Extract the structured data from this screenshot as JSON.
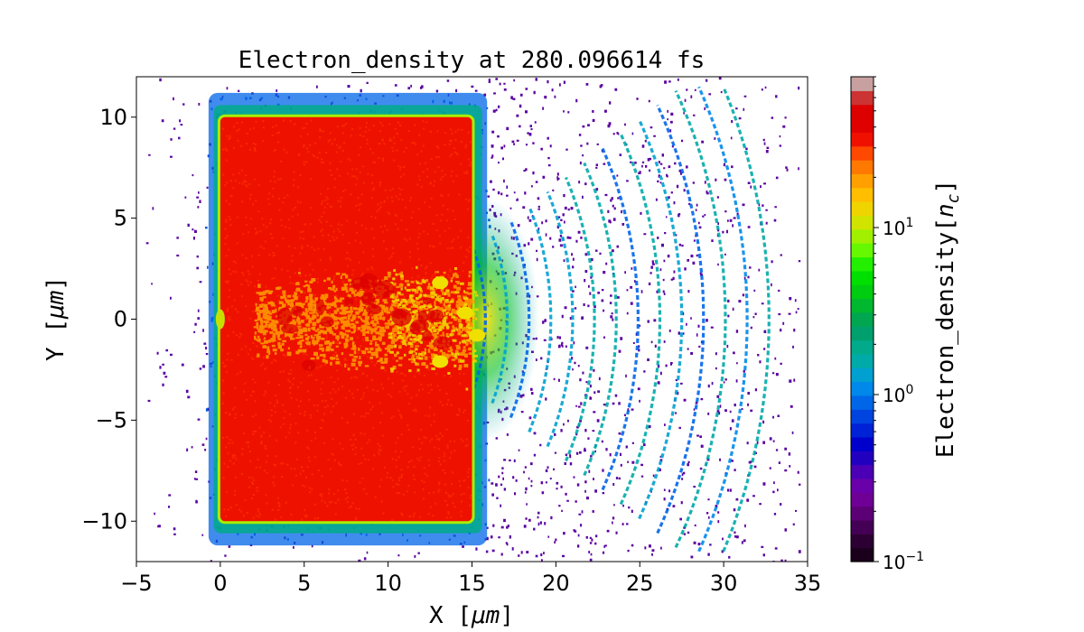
{
  "chart_data": {
    "type": "heatmap",
    "title": "Electron_density at 280.096614 fs",
    "xlabel": "X [",
    "xlabel_unit": "μm",
    "xlabel_close": "]",
    "ylabel": "Y [",
    "ylabel_unit": "μm",
    "ylabel_close": "]",
    "xlim": [
      -5,
      35
    ],
    "ylim": [
      -12,
      12
    ],
    "xticks": [
      -5,
      0,
      5,
      10,
      15,
      20,
      25,
      30,
      35
    ],
    "xtick_labels": [
      "−5",
      "0",
      "5",
      "10",
      "15",
      "20",
      "25",
      "30",
      "35"
    ],
    "yticks": [
      -10,
      -5,
      0,
      5,
      10
    ],
    "ytick_labels": [
      "−10",
      "−5",
      "0",
      "5",
      "10"
    ],
    "target": {
      "x_range": [
        0,
        15
      ],
      "y_range": [
        -10,
        10
      ],
      "level": "max (~50 n_c)"
    },
    "channel": {
      "x_range": [
        2,
        15
      ],
      "y_range": [
        -2,
        2
      ],
      "level": "~10–30 n_c"
    },
    "wavefronts": {
      "x_start": 15,
      "x_end": 33,
      "spacing": 1.3,
      "level": "~0.3–3 n_c"
    },
    "colorbar": {
      "label": "Electron_density[",
      "label_var": "n",
      "label_sub": "c",
      "label_close": "]",
      "scale": "log",
      "range": [
        0.1,
        80
      ],
      "ticks": [
        0.1,
        1,
        10
      ],
      "tick_bases": [
        "10",
        "10",
        "10"
      ],
      "tick_exps": [
        "−1",
        "0",
        "1"
      ],
      "colors": [
        "#1a001a",
        "#2d0033",
        "#440055",
        "#5c0075",
        "#6f0096",
        "#6a00aa",
        "#4c00b5",
        "#2200c0",
        "#0000cc",
        "#0022d6",
        "#0044e0",
        "#0066e8",
        "#0088ea",
        "#00a0d0",
        "#00aaa8",
        "#00aa8a",
        "#00a06e",
        "#00a650",
        "#00b830",
        "#00cc10",
        "#00e000",
        "#22f000",
        "#66f800",
        "#a0f000",
        "#d0e400",
        "#f0d400",
        "#ffbe00",
        "#ffa000",
        "#ff7800",
        "#ff4800",
        "#f01000",
        "#e00000",
        "#dc0000",
        "#cc3333",
        "#c8a0a0"
      ]
    }
  }
}
